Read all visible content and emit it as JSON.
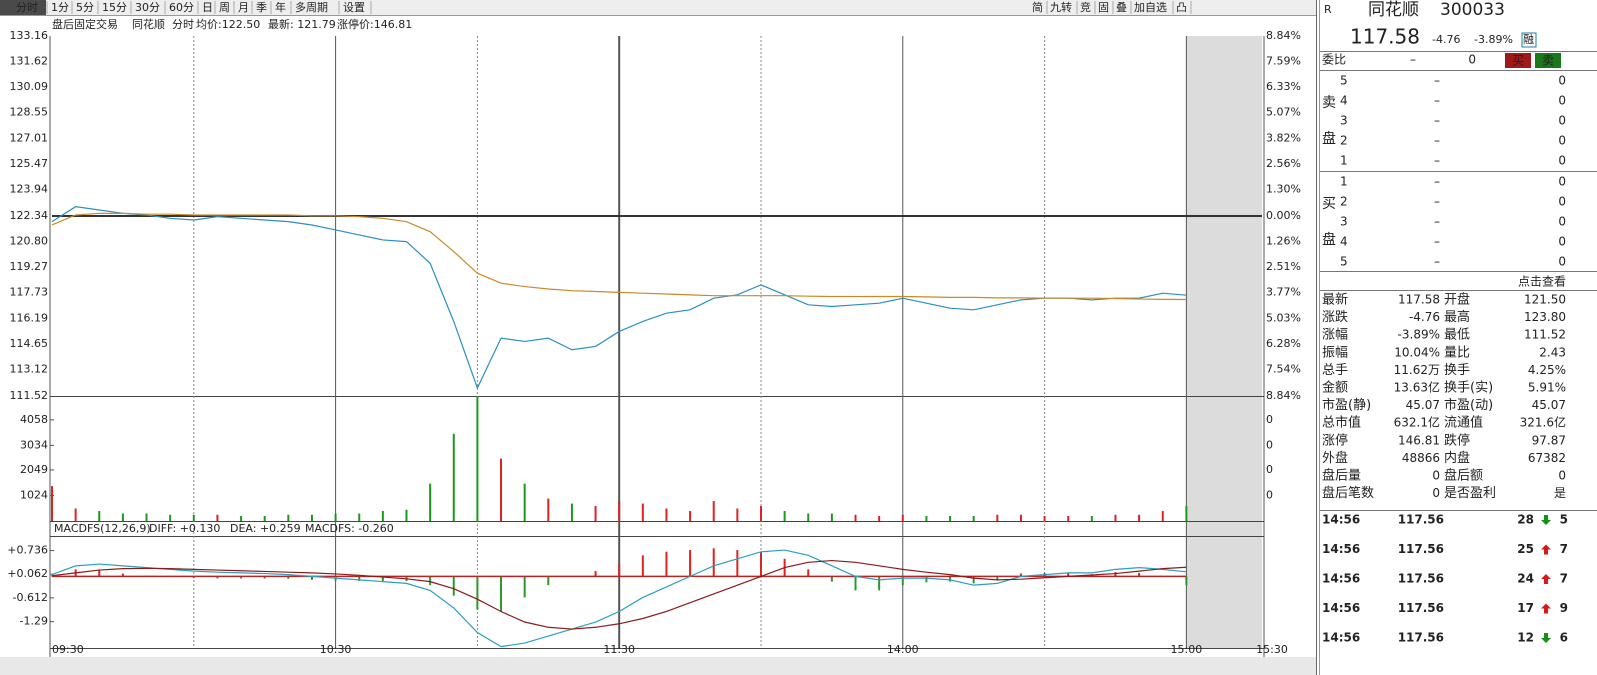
{
  "toolbar": {
    "tabs": [
      "分时",
      "1分",
      "5分",
      "15分",
      "30分",
      "60分",
      "日",
      "周",
      "月",
      "季",
      "年",
      "多周期",
      "设置"
    ],
    "tools": [
      "简",
      "九转",
      "竞",
      "固",
      "叠",
      "加自选",
      "凸"
    ]
  },
  "info_bar": [
    "盘后固定交易",
    "同花顺",
    "分时",
    "均价:122.50",
    "最新: 121.79",
    "涨停价:146.81"
  ],
  "chart_data": [
    {
      "type": "line",
      "x": [
        0,
        5,
        10,
        15,
        20,
        25,
        30,
        35,
        40,
        45,
        50,
        55,
        60,
        65,
        70,
        75,
        80,
        85,
        90,
        95,
        100,
        105,
        110,
        115,
        120,
        125,
        130,
        135,
        140,
        145,
        150,
        155,
        160,
        165,
        170,
        175,
        180,
        185,
        190,
        195,
        200,
        205,
        210,
        215,
        220,
        225,
        230,
        235,
        240
      ],
      "xlim": [
        0,
        256
      ],
      "xticks": [
        {
          "value": 0,
          "label": "09:30"
        },
        {
          "value": 60,
          "label": "10:30"
        },
        {
          "value": 120,
          "label": "11:30"
        },
        {
          "value": 180,
          "label": "14:00"
        },
        {
          "value": 240,
          "label": "15:00"
        },
        {
          "value": 256,
          "label": "15:30"
        }
      ],
      "minor_xticks": [
        30,
        90,
        150,
        210
      ],
      "ylim": [
        111.52,
        133.16
      ],
      "yticks": [
        133.16,
        131.62,
        130.09,
        128.55,
        127.01,
        125.47,
        123.94,
        122.34,
        {
          "value": 120.8,
          "label": "120.80"
        },
        119.27,
        117.73,
        116.19,
        114.65,
        113.12,
        111.52
      ],
      "y_right_labels": [
        "8.84%",
        "7.59%",
        "6.33%",
        "5.07%",
        "3.82%",
        "2.56%",
        "1.30%",
        "0.00%",
        "1.26%",
        "2.51%",
        "3.77%",
        "5.03%",
        "6.28%",
        "7.54%",
        "8.84%"
      ],
      "series": [
        {
          "color": "#2b8fbf",
          "values": [
            122.0,
            122.9,
            122.7,
            122.5,
            122.4,
            122.2,
            122.1,
            122.3,
            122.2,
            122.1,
            122.0,
            121.8,
            121.5,
            121.2,
            120.9,
            120.8,
            119.5,
            116.0,
            112.0,
            115.0,
            114.8,
            115.0,
            114.3,
            114.5,
            115.4,
            116.0,
            116.5,
            116.7,
            117.4,
            117.6,
            118.2,
            117.6,
            117.0,
            116.9,
            117.0,
            117.1,
            117.4,
            117.1,
            116.8,
            116.7,
            117.0,
            117.3,
            117.4,
            117.4,
            117.3,
            117.4,
            117.4,
            117.7,
            117.58
          ]
        },
        {
          "color": "#c98a2a",
          "values": [
            121.8,
            122.4,
            122.5,
            122.5,
            122.45,
            122.45,
            122.4,
            122.4,
            122.4,
            122.4,
            122.4,
            122.35,
            122.35,
            122.3,
            122.2,
            122.0,
            121.4,
            120.2,
            118.9,
            118.3,
            118.1,
            117.95,
            117.85,
            117.8,
            117.75,
            117.7,
            117.65,
            117.6,
            117.55,
            117.55,
            117.55,
            117.55,
            117.52,
            117.5,
            117.5,
            117.5,
            117.5,
            117.48,
            117.45,
            117.45,
            117.42,
            117.42,
            117.4,
            117.4,
            117.4,
            117.38,
            117.35,
            117.33,
            117.32
          ]
        }
      ]
    },
    {
      "type": "bar",
      "x": [
        0,
        5,
        10,
        15,
        20,
        25,
        30,
        35,
        40,
        45,
        50,
        55,
        60,
        65,
        70,
        75,
        80,
        85,
        90,
        95,
        100,
        105,
        110,
        115,
        120,
        125,
        130,
        135,
        140,
        145,
        150,
        155,
        160,
        165,
        170,
        175,
        180,
        185,
        190,
        195,
        200,
        205,
        210,
        215,
        220,
        225,
        230,
        235,
        240
      ],
      "ylim": [
        0,
        5016
      ],
      "yticks": [
        1024,
        2049,
        3034,
        4058
      ],
      "y_right_labels": [
        "0",
        "0",
        "0",
        "0"
      ],
      "up_color": "#d22",
      "down_color": "#1a9a1a",
      "values": [
        1400,
        500,
        400,
        300,
        300,
        250,
        250,
        250,
        200,
        200,
        250,
        250,
        300,
        300,
        400,
        450,
        1500,
        3500,
        5000,
        2500,
        1500,
        900,
        700,
        600,
        800,
        700,
        500,
        400,
        800,
        500,
        600,
        400,
        300,
        300,
        250,
        200,
        250,
        200,
        200,
        200,
        250,
        250,
        200,
        200,
        200,
        250,
        250,
        400,
        600
      ]
    },
    {
      "type": "macd",
      "title": "MACDFS(12,26,9)",
      "labels": [
        "DIFF: +0.130",
        "DEA: +0.259",
        "MACDFS: -0.260"
      ],
      "x": [
        0,
        5,
        10,
        15,
        20,
        25,
        30,
        35,
        40,
        45,
        50,
        55,
        60,
        65,
        70,
        75,
        80,
        85,
        90,
        95,
        100,
        105,
        110,
        115,
        120,
        125,
        130,
        135,
        140,
        145,
        150,
        155,
        160,
        165,
        170,
        175,
        180,
        185,
        190,
        195,
        200,
        205,
        210,
        215,
        220,
        225,
        230,
        235,
        240
      ],
      "ylim": [
        -2.04,
        1.15
      ],
      "yticks": [
        {
          "value": 0.736,
          "label": "+0.736"
        },
        {
          "value": 0.062,
          "label": "+0.062"
        },
        -0.612,
        -1.29
      ],
      "pos_color": "#d22",
      "neg_color": "#2a9a2a",
      "series": [
        {
          "color": "#2b9fc0",
          "values": [
            0.05,
            0.3,
            0.35,
            0.3,
            0.25,
            0.2,
            0.15,
            0.12,
            0.1,
            0.08,
            0.05,
            0.0,
            -0.05,
            -0.1,
            -0.15,
            -0.2,
            -0.4,
            -0.9,
            -1.6,
            -2.0,
            -1.9,
            -1.7,
            -1.5,
            -1.3,
            -1.0,
            -0.6,
            -0.3,
            0.0,
            0.3,
            0.5,
            0.7,
            0.75,
            0.6,
            0.3,
            0.0,
            -0.1,
            -0.05,
            -0.05,
            -0.1,
            -0.25,
            -0.2,
            0.0,
            0.05,
            0.1,
            0.1,
            0.2,
            0.25,
            0.2,
            0.13
          ]
        },
        {
          "color": "#8b1a1a",
          "values": [
            0.02,
            0.1,
            0.18,
            0.22,
            0.23,
            0.22,
            0.2,
            0.18,
            0.16,
            0.14,
            0.12,
            0.1,
            0.07,
            0.03,
            -0.02,
            -0.07,
            -0.15,
            -0.35,
            -0.65,
            -1.0,
            -1.3,
            -1.45,
            -1.5,
            -1.45,
            -1.35,
            -1.2,
            -1.0,
            -0.75,
            -0.5,
            -0.25,
            0.0,
            0.25,
            0.4,
            0.45,
            0.4,
            0.3,
            0.2,
            0.12,
            0.05,
            -0.05,
            -0.1,
            -0.08,
            -0.04,
            0.0,
            0.04,
            0.08,
            0.15,
            0.22,
            0.259
          ]
        }
      ],
      "histogram": [
        0.03,
        0.2,
        0.17,
        0.08,
        0.02,
        -0.02,
        -0.05,
        -0.06,
        -0.06,
        -0.06,
        -0.07,
        -0.1,
        -0.12,
        -0.13,
        -0.13,
        -0.13,
        -0.25,
        -0.55,
        -0.95,
        -1.0,
        -0.6,
        -0.25,
        0.0,
        0.15,
        0.35,
        0.6,
        0.7,
        0.75,
        0.8,
        0.75,
        0.7,
        0.5,
        0.2,
        -0.15,
        -0.4,
        -0.4,
        -0.25,
        -0.17,
        -0.15,
        -0.2,
        -0.1,
        0.08,
        0.1,
        0.1,
        0.06,
        0.12,
        0.1,
        -0.02,
        -0.26
      ]
    }
  ],
  "quote": {
    "flag": "R",
    "name": "同花顺",
    "code": "300033",
    "price": "117.58",
    "change": "-4.76",
    "change_pct": "-3.89%",
    "tag": "融"
  },
  "order_book": {
    "ratio_label": "委比",
    "ratio_value": "–",
    "ratio_number": "0",
    "buy_button": "买",
    "sell_button": "卖",
    "sell_label": [
      "卖",
      "盘"
    ],
    "buy_label": [
      "买",
      "盘"
    ],
    "sell_levels": [
      [
        "5",
        "–",
        "0"
      ],
      [
        "4",
        "–",
        "0"
      ],
      [
        "3",
        "–",
        "0"
      ],
      [
        "2",
        "–",
        "0"
      ],
      [
        "1",
        "–",
        "0"
      ]
    ],
    "buy_levels": [
      [
        "1",
        "–",
        "0"
      ],
      [
        "2",
        "–",
        "0"
      ],
      [
        "3",
        "–",
        "0"
      ],
      [
        "4",
        "–",
        "0"
      ],
      [
        "5",
        "–",
        "0"
      ]
    ],
    "link": "点击查看"
  },
  "stats": [
    [
      "最新",
      "117.58",
      "开盘",
      "121.50"
    ],
    [
      "涨跌",
      "-4.76",
      "最高",
      "123.80"
    ],
    [
      "涨幅",
      "-3.89%",
      "最低",
      "111.52"
    ],
    [
      "振幅",
      "10.04%",
      "量比",
      "2.43"
    ],
    [
      "总手",
      "11.62万",
      "换手",
      "4.25%"
    ],
    [
      "金额",
      "13.63亿",
      "换手(实)",
      "5.91%"
    ],
    [
      "市盈(静)",
      "45.07",
      "市盈(动)",
      "45.07"
    ],
    [
      "总市值",
      "632.1亿",
      "流通值",
      "321.6亿"
    ],
    [
      "涨停",
      "146.81",
      "跌停",
      "97.87"
    ],
    [
      "外盘",
      "48866",
      "内盘",
      "67382"
    ],
    [
      "盘后量",
      "0",
      "盘后额",
      "0"
    ],
    [
      "盘后笔数",
      "0",
      "是否盈利",
      "是"
    ]
  ],
  "trades": [
    {
      "time": "14:56",
      "price": "117.56",
      "volume": "28",
      "dir": "down",
      "count": "5"
    },
    {
      "time": "14:56",
      "price": "117.56",
      "volume": "25",
      "dir": "up",
      "count": "7"
    },
    {
      "time": "14:56",
      "price": "117.56",
      "volume": "24",
      "dir": "up",
      "count": "7"
    },
    {
      "time": "14:56",
      "price": "117.56",
      "volume": "17",
      "dir": "up",
      "count": "9"
    },
    {
      "time": "14:56",
      "price": "117.56",
      "volume": "12",
      "dir": "down",
      "count": "6"
    }
  ]
}
